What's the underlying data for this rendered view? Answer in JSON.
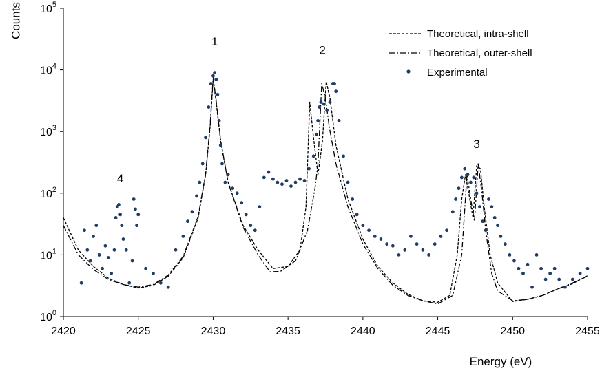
{
  "chart_data": {
    "type": "scatter",
    "title": "",
    "xlabel": "Energy (eV)",
    "ylabel": "Counts",
    "xlim": [
      2420,
      2455
    ],
    "ylim": [
      1,
      100000
    ],
    "y_scale": "log",
    "x_ticks": [
      "2420",
      "2425",
      "2430",
      "2435",
      "2440",
      "2445",
      "2450",
      "2455"
    ],
    "y_ticks": [
      {
        "base": "10",
        "exp": "0"
      },
      {
        "base": "10",
        "exp": "1"
      },
      {
        "base": "10",
        "exp": "2"
      },
      {
        "base": "10",
        "exp": "3"
      },
      {
        "base": "10",
        "exp": "4"
      },
      {
        "base": "10",
        "exp": "5"
      }
    ],
    "grid": false,
    "legend": {
      "placement": "top-right",
      "entries": [
        {
          "label": "Theoretical, intra-shell",
          "style": "dashed"
        },
        {
          "label": "Theoretical, outer-shell",
          "style": "dash-dot"
        },
        {
          "label": "Experimental",
          "style": "marker"
        }
      ]
    },
    "annotations": [
      {
        "text": "1",
        "x": 2430.1,
        "y": 25000
      },
      {
        "text": "2",
        "x": 2437.3,
        "y": 18000
      },
      {
        "text": "3",
        "x": 2447.6,
        "y": 540
      },
      {
        "text": "4",
        "x": 2423.8,
        "y": 150
      }
    ],
    "series": [
      {
        "name": "Theoretical, intra-shell",
        "style": "dashed",
        "color": "#000000",
        "x": [
          2420.0,
          2421.0,
          2422.0,
          2423.0,
          2424.0,
          2425.0,
          2426.0,
          2427.0,
          2428.0,
          2429.0,
          2429.5,
          2429.8,
          2430.0,
          2430.2,
          2430.5,
          2431.0,
          2432.0,
          2433.0,
          2434.0,
          2435.0,
          2435.8,
          2436.2,
          2436.45,
          2436.7,
          2437.0,
          2437.3,
          2437.55,
          2437.8,
          2438.2,
          2439.0,
          2440.0,
          2441.0,
          2442.0,
          2443.0,
          2444.0,
          2445.0,
          2445.8,
          2446.3,
          2446.6,
          2446.85,
          2447.1,
          2447.35,
          2447.6,
          2447.85,
          2448.1,
          2448.5,
          2449.0,
          2450.0,
          2451.0,
          2452.0,
          2453.0,
          2454.0,
          2455.0
        ],
        "y": [
          40,
          12,
          6.5,
          4.2,
          3.3,
          2.9,
          3.2,
          4.5,
          9,
          40,
          200,
          1200,
          7000,
          3000,
          700,
          150,
          30,
          12,
          6,
          6.5,
          12,
          60,
          3000,
          800,
          200,
          700,
          6500,
          3500,
          600,
          80,
          18,
          6.5,
          3.5,
          2.3,
          1.8,
          1.7,
          2.2,
          10,
          80,
          200,
          90,
          40,
          280,
          250,
          60,
          10,
          3.5,
          1.75,
          1.9,
          2.2,
          2.8,
          3.4,
          4.6
        ]
      },
      {
        "name": "Theoretical, outer-shell",
        "style": "dash-dot",
        "color": "#000000",
        "x": [
          2420.0,
          2421.0,
          2422.0,
          2423.0,
          2424.0,
          2425.0,
          2426.0,
          2427.0,
          2428.0,
          2429.0,
          2429.5,
          2429.8,
          2430.0,
          2430.2,
          2430.5,
          2431.0,
          2432.0,
          2433.0,
          2433.8,
          2434.5,
          2435.5,
          2436.3,
          2436.8,
          2437.0,
          2437.25,
          2437.5,
          2437.75,
          2438.2,
          2439.0,
          2440.0,
          2441.0,
          2442.0,
          2443.0,
          2444.0,
          2445.0,
          2446.0,
          2446.6,
          2446.95,
          2447.2,
          2447.45,
          2447.7,
          2447.95,
          2448.2,
          2448.6,
          2449.0,
          2450.0,
          2451.0,
          2452.0,
          2453.0,
          2454.0,
          2455.0
        ],
        "y": [
          30,
          10,
          5.8,
          4.0,
          3.3,
          3.0,
          3.3,
          4.7,
          9.5,
          42,
          210,
          1300,
          7500,
          3200,
          720,
          150,
          28,
          10,
          5.3,
          5.4,
          8,
          25,
          120,
          300,
          6000,
          3500,
          1200,
          300,
          60,
          15,
          6,
          3.2,
          2.2,
          1.8,
          1.6,
          2.2,
          10,
          200,
          80,
          35,
          300,
          100,
          25,
          5,
          2.6,
          1.8,
          1.9,
          2.2,
          2.8,
          3.5,
          4.5
        ]
      },
      {
        "name": "Experimental",
        "style": "marker",
        "color": "#1f3c64",
        "x": [
          2421.2,
          2421.4,
          2421.6,
          2421.8,
          2422.0,
          2422.2,
          2422.4,
          2422.6,
          2422.8,
          2423.0,
          2423.2,
          2423.4,
          2423.5,
          2423.6,
          2423.7,
          2423.8,
          2423.9,
          2424.0,
          2424.2,
          2424.4,
          2424.6,
          2424.7,
          2424.8,
          2424.9,
          2425.0,
          2425.5,
          2426.0,
          2426.5,
          2427.0,
          2427.5,
          2428.0,
          2428.3,
          2428.6,
          2428.9,
          2429.1,
          2429.3,
          2429.5,
          2429.7,
          2429.85,
          2430.0,
          2430.1,
          2430.2,
          2430.3,
          2430.4,
          2430.5,
          2430.6,
          2430.8,
          2431.0,
          2431.3,
          2431.6,
          2431.9,
          2432.2,
          2432.5,
          2432.8,
          2433.1,
          2433.4,
          2433.7,
          2434.0,
          2434.3,
          2434.6,
          2434.9,
          2435.2,
          2435.5,
          2435.8,
          2436.1,
          2436.4,
          2436.7,
          2436.9,
          2437.0,
          2437.1,
          2437.2,
          2437.4,
          2437.6,
          2437.8,
          2438.0,
          2438.1,
          2438.2,
          2438.4,
          2438.7,
          2439.0,
          2439.3,
          2439.6,
          2440.0,
          2440.4,
          2440.8,
          2441.2,
          2441.6,
          2442.0,
          2442.4,
          2442.8,
          2443.2,
          2443.6,
          2444.0,
          2444.4,
          2444.8,
          2445.2,
          2445.6,
          2446.0,
          2446.2,
          2446.4,
          2446.6,
          2446.8,
          2447.0,
          2447.2,
          2447.4,
          2447.6,
          2447.8,
          2448.0,
          2448.2,
          2448.4,
          2448.6,
          2448.8,
          2449.0,
          2449.2,
          2449.5,
          2449.8,
          2450.1,
          2450.4,
          2450.7,
          2451.0,
          2451.3,
          2451.6,
          2451.9,
          2452.2,
          2452.5,
          2452.8,
          2453.1,
          2453.5,
          2454.0,
          2454.5,
          2455.0
        ],
        "y": [
          3.5,
          25,
          12,
          8,
          20,
          30,
          10,
          6,
          14,
          9,
          5,
          12,
          40,
          60,
          65,
          45,
          30,
          18,
          12,
          3.5,
          8,
          80,
          55,
          30,
          45,
          6,
          5,
          3.5,
          3,
          12,
          20,
          35,
          50,
          90,
          150,
          300,
          800,
          2500,
          6000,
          8000,
          9000,
          7000,
          4000,
          1500,
          600,
          300,
          150,
          200,
          120,
          100,
          70,
          45,
          30,
          25,
          60,
          180,
          220,
          170,
          150,
          140,
          160,
          130,
          150,
          170,
          160,
          250,
          400,
          900,
          1500,
          2500,
          3000,
          2800,
          2200,
          3000,
          6000,
          6000,
          4500,
          1500,
          400,
          150,
          80,
          45,
          30,
          25,
          20,
          18,
          15,
          14,
          10,
          12,
          20,
          15,
          12,
          10,
          15,
          20,
          25,
          50,
          80,
          120,
          180,
          250,
          200,
          150,
          180,
          100,
          60,
          35,
          25,
          80,
          60,
          40,
          30,
          20,
          15,
          10,
          8,
          6,
          5,
          7,
          3,
          10,
          6,
          4,
          5,
          6,
          4,
          3,
          4,
          5,
          6
        ]
      }
    ]
  }
}
